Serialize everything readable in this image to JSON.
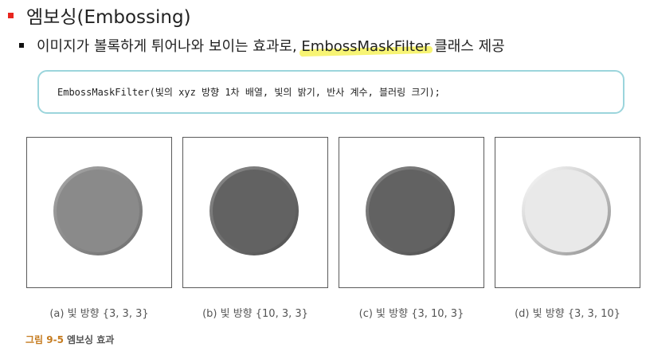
{
  "heading": {
    "text": "엠보싱(Embossing)"
  },
  "subheading": {
    "before": "이미지가 볼록하게 튀어나와 보이는 효과로, ",
    "highlight": "EmbossMaskFilter",
    "after": " 클래스 제공"
  },
  "code": {
    "text": "EmbossMaskFilter(빛의 xyz 방향 1차 배열, 빛의 밝기, 반사 계수, 블러링 크기);"
  },
  "panels": [
    {
      "caption": "(a) 빛 방향 {3, 3, 3}",
      "fill": "#8a8a8a",
      "rim_light": "#a8a8a8",
      "rim_dark": "#6e6e6e"
    },
    {
      "caption": "(b) 빛 방향 {10, 3, 3}",
      "fill": "#626262",
      "rim_light": "#8c8c8c",
      "rim_dark": "#4e4e4e"
    },
    {
      "caption": "(c) 빛 방향 {3, 10, 3}",
      "fill": "#626262",
      "rim_light": "#888888",
      "rim_dark": "#4c4c4c"
    },
    {
      "caption": "(d) 빛 방향 {3, 3, 10}",
      "fill": "#e9e9e9",
      "rim_light": "#ffffff",
      "rim_dark": "#8e8e8e"
    }
  ],
  "figure": {
    "label": "그림 9-5",
    "title": "엠보싱 효과"
  },
  "colors": {
    "accent": "#e8251e",
    "highlight": "#f3ee2a",
    "code_border": "#9bd5dc",
    "figure_label": "#c57b1f"
  }
}
